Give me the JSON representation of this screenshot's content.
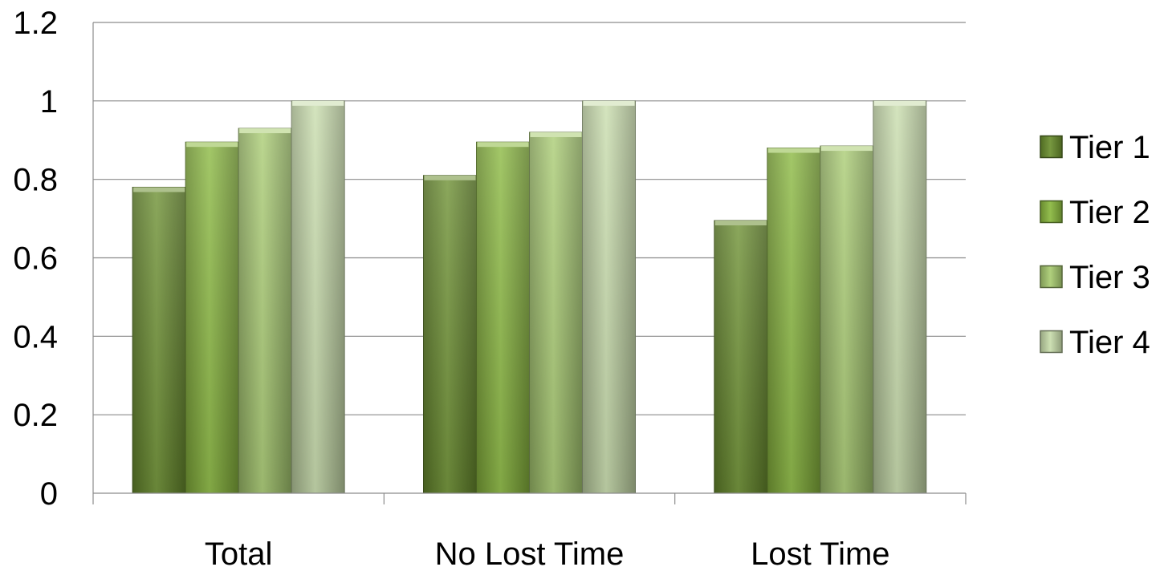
{
  "chart_data": {
    "type": "bar",
    "categories": [
      "Total",
      "No Lost Time",
      "Lost Time"
    ],
    "series": [
      {
        "name": "Tier 1",
        "values": [
          0.78,
          0.81,
          0.695
        ],
        "color": "#6b8f2f"
      },
      {
        "name": "Tier 2",
        "values": [
          0.895,
          0.895,
          0.88
        ],
        "color": "#8ab83f"
      },
      {
        "name": "Tier 3",
        "values": [
          0.93,
          0.92,
          0.885
        ],
        "color": "#a9cc72"
      },
      {
        "name": "Tier 4",
        "values": [
          1.0,
          1.0,
          1.0
        ],
        "color": "#c9ddac"
      }
    ],
    "ylim": [
      0,
      1.2
    ],
    "yticks": [
      "0",
      "0.2",
      "0.4",
      "0.6",
      "0.8",
      "1",
      "1.2"
    ],
    "ytick_values": [
      0,
      0.2,
      0.4,
      0.6,
      0.8,
      1.0,
      1.2
    ],
    "grid": true,
    "legend_position": "right",
    "title": "",
    "xlabel": "",
    "ylabel": ""
  }
}
